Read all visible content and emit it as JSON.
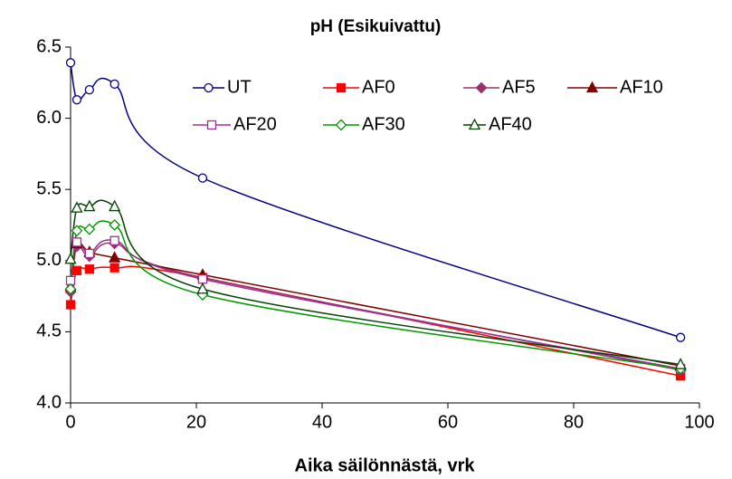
{
  "chart_data": {
    "type": "line",
    "title": "pH (Esikuivattu)",
    "x_label": "Aika säilönnästä, vrk",
    "x": [
      0,
      1,
      3,
      7,
      21,
      97
    ],
    "xlim": [
      0,
      100
    ],
    "xticks": [
      0,
      20,
      40,
      60,
      80,
      100
    ],
    "ylim": [
      4.0,
      6.5
    ],
    "yticks": [
      {
        "value": 4.0,
        "label": "4.0"
      },
      4.5,
      {
        "value": 5.0,
        "label": "5.0"
      },
      5.5,
      {
        "value": 6.0,
        "label": "6.0"
      },
      6.5
    ],
    "grid": false,
    "series": [
      {
        "name": "UT",
        "color": "#000080",
        "marker": "circle",
        "filled": false,
        "values": [
          6.39,
          6.13,
          6.2,
          6.24,
          5.58,
          4.46
        ]
      },
      {
        "name": "AF0",
        "color": "#ff0000",
        "marker": "square",
        "filled": true,
        "values": [
          4.69,
          4.93,
          4.94,
          4.95,
          4.88,
          4.19
        ]
      },
      {
        "name": "AF5",
        "color": "#993366",
        "marker": "diamond",
        "filled": true,
        "values": [
          4.78,
          5.1,
          5.03,
          5.12,
          4.88,
          4.23
        ]
      },
      {
        "name": "AF10",
        "color": "#800000",
        "marker": "triangle",
        "filled": true,
        "values": [
          4.82,
          5.12,
          5.06,
          5.02,
          4.9,
          4.26
        ]
      },
      {
        "name": "AF20",
        "color": "#993399",
        "marker": "square",
        "filled": false,
        "values": [
          4.86,
          5.13,
          5.05,
          5.14,
          4.87,
          4.24
        ]
      },
      {
        "name": "AF30",
        "color": "#009900",
        "marker": "diamond",
        "filled": false,
        "values": [
          4.8,
          5.21,
          5.22,
          5.25,
          4.76,
          4.24
        ]
      },
      {
        "name": "AF40",
        "color": "#004000",
        "marker": "triangle",
        "filled": false,
        "values": [
          5.01,
          5.37,
          5.38,
          5.38,
          4.8,
          4.27
        ]
      }
    ]
  }
}
